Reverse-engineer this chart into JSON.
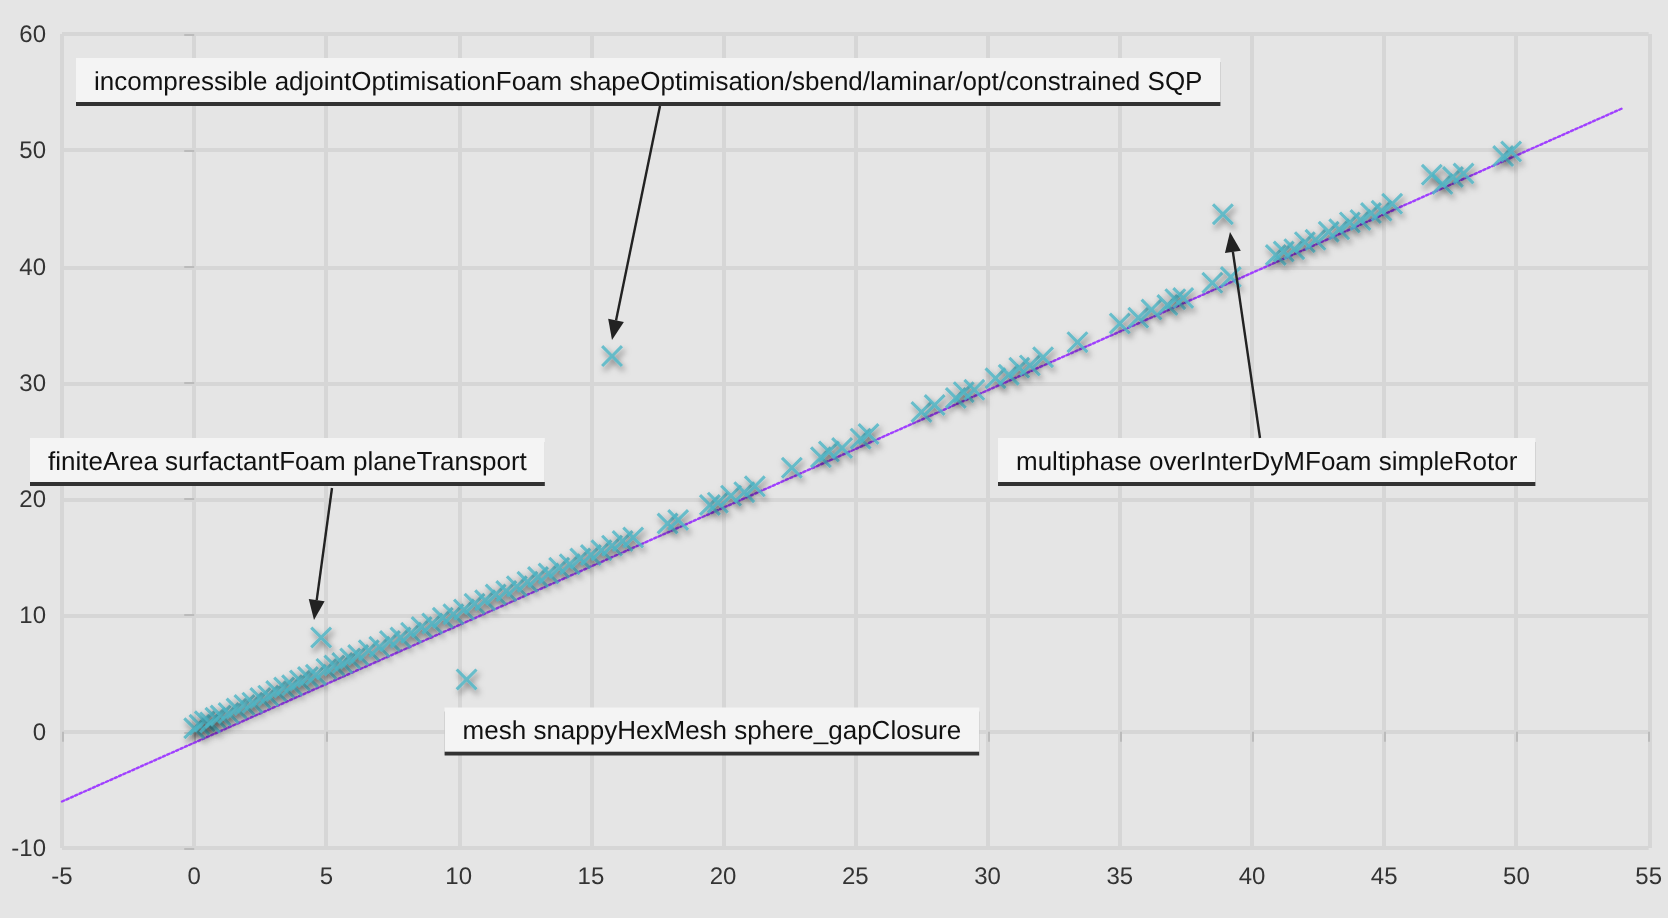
{
  "chart_data": {
    "type": "scatter",
    "xlim": [
      -5,
      55
    ],
    "ylim": [
      -10,
      60
    ],
    "xticks": [
      -5,
      0,
      5,
      10,
      15,
      20,
      25,
      30,
      35,
      40,
      45,
      50,
      55
    ],
    "yticks": [
      -10,
      0,
      10,
      20,
      30,
      40,
      50,
      60
    ],
    "grid": true,
    "marker": "cross",
    "series": [
      {
        "type": "scatter",
        "color": "#4cb5c5",
        "x": [
          0,
          0.2,
          0.4,
          0.6,
          0.8,
          1.0,
          1.3,
          1.6,
          1.9,
          2.2,
          2.5,
          2.8,
          3.1,
          3.4,
          3.7,
          4.0,
          4.3,
          4.6,
          5.0,
          5.3,
          5.6,
          5.9,
          6.2,
          6.6,
          7.0,
          7.4,
          7.8,
          8.2,
          8.6,
          9.0,
          9.4,
          9.8,
          10.2,
          10.6,
          11.0,
          11.4,
          11.8,
          12.2,
          12.6,
          13.0,
          13.4,
          13.8,
          14.2,
          14.6,
          15.0,
          15.4,
          15.8,
          16.2,
          16.6,
          17.9,
          18.3,
          19.5,
          19.8,
          20.3,
          20.8,
          21.2,
          22.6,
          23.7,
          24.0,
          24.5,
          25.2,
          25.5,
          27.5,
          28.0,
          28.8,
          29.1,
          29.5,
          30.3,
          30.8,
          31.2,
          31.6,
          32.1,
          33.4,
          35.0,
          35.7,
          36.2,
          36.8,
          37.1,
          37.4,
          38.5,
          39.2,
          40.9,
          41.2,
          41.6,
          42.0,
          42.4,
          42.9,
          43.3,
          43.7,
          44.1,
          44.5,
          44.9,
          45.3,
          46.8,
          47.2,
          47.6,
          48.0,
          49.5,
          49.8,
          15.8,
          4.8,
          10.3,
          38.9
        ],
        "values": [
          0.3,
          0.6,
          0.9,
          0.8,
          1.2,
          1.4,
          1.6,
          2.0,
          2.3,
          2.5,
          2.9,
          3.1,
          3.5,
          3.8,
          4.0,
          4.4,
          4.7,
          4.9,
          5.4,
          5.7,
          5.9,
          6.3,
          6.6,
          7.0,
          7.3,
          7.8,
          8.1,
          8.5,
          9.0,
          9.3,
          9.8,
          10.1,
          10.5,
          11.0,
          11.3,
          11.8,
          12.1,
          12.5,
          12.9,
          13.3,
          13.6,
          14.1,
          14.4,
          14.9,
          15.2,
          15.6,
          16.0,
          16.4,
          16.7,
          17.9,
          18.2,
          19.5,
          19.7,
          20.3,
          20.6,
          21.1,
          22.7,
          23.6,
          24.1,
          24.4,
          25.2,
          25.6,
          27.5,
          28.1,
          28.7,
          29.2,
          29.4,
          30.4,
          30.7,
          31.3,
          31.5,
          32.2,
          33.5,
          35.1,
          35.6,
          36.3,
          36.7,
          37.2,
          37.3,
          38.6,
          39.1,
          41.0,
          41.3,
          41.5,
          42.1,
          42.3,
          43.0,
          43.2,
          43.8,
          44.0,
          44.6,
          44.8,
          45.4,
          47.9,
          47.1,
          47.7,
          48.0,
          49.5,
          49.9,
          32.3,
          8.1,
          4.5,
          44.5
        ]
      },
      {
        "type": "line",
        "color": "#a040ff",
        "line_style": "dotted",
        "marker": "none",
        "x": [
          -5,
          54
        ],
        "values": [
          -6.0,
          53.6
        ]
      }
    ],
    "annotations": [
      "incompressible adjointOptimisationFoam shapeOptimisation/sbend/laminar/opt/constrained SQP",
      "finiteArea surfactantFoam planeTransport",
      {
        "text": "mesh snappyHexMesh sphere_gapClosure",
        "x": 10.3,
        "y": 4.5
      },
      "multiphase overInterDyMFoam simpleRotor"
    ]
  }
}
